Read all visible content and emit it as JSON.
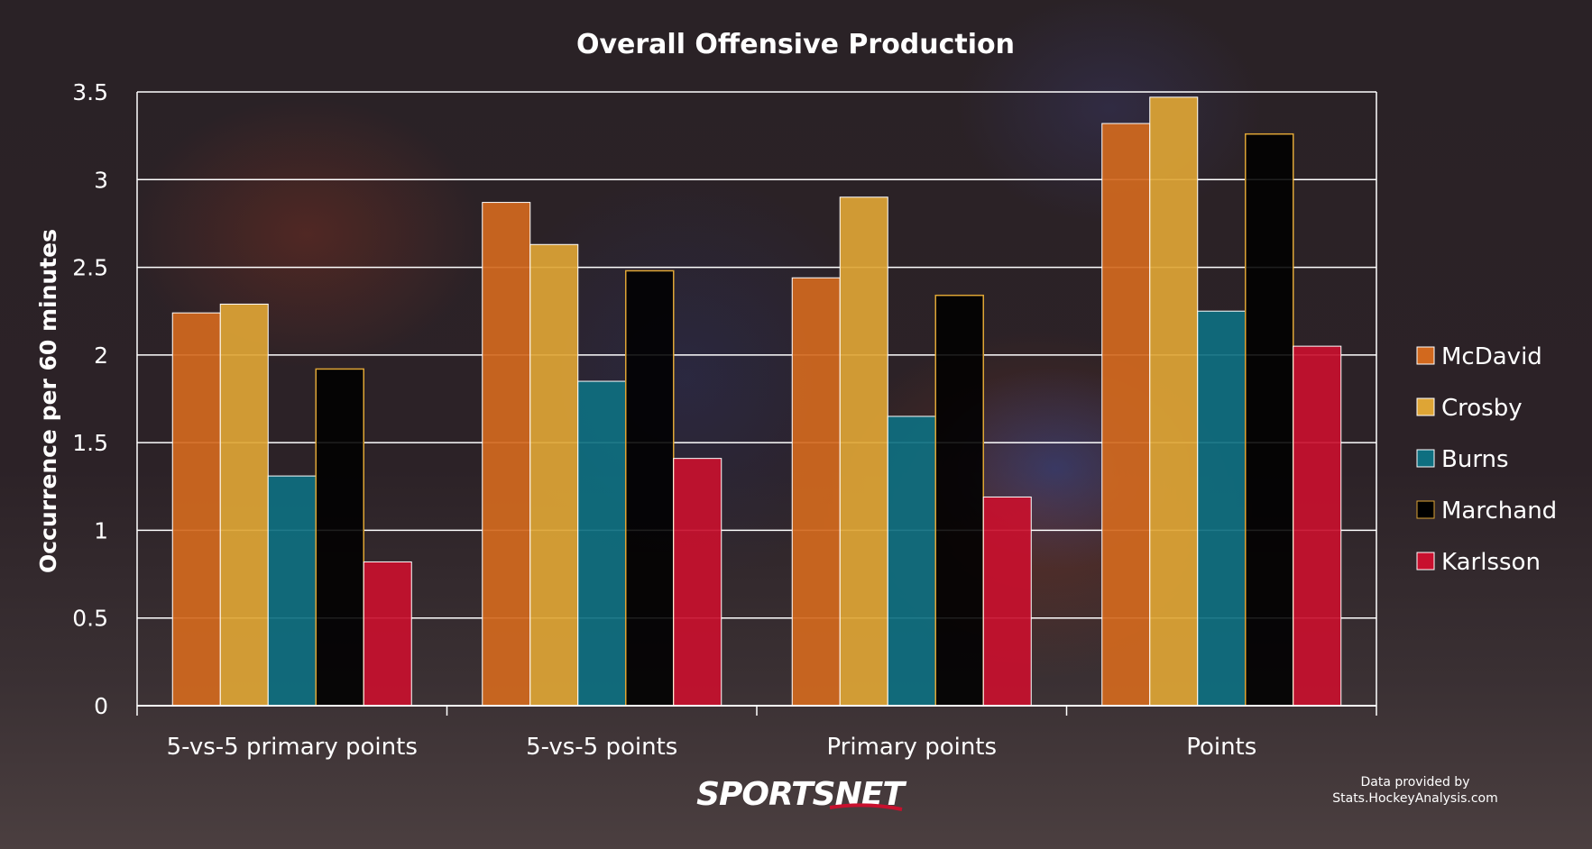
{
  "chart_data": {
    "type": "bar",
    "title": "Overall Offensive Production",
    "xlabel": "",
    "ylabel": "Occurrence per 60 minutes",
    "ylim": [
      0,
      3.5
    ],
    "yticks": [
      "0",
      "0.5",
      "1",
      "1.5",
      "2",
      "2.5",
      "3",
      "3.5"
    ],
    "categories": [
      "5-vs-5 primary points",
      "5-vs-5 points",
      "Primary points",
      "Points"
    ],
    "series": [
      {
        "name": "McDavid",
        "color": "#d2691e",
        "values": [
          2.24,
          2.87,
          2.44,
          3.32
        ]
      },
      {
        "name": "Crosby",
        "color": "#dea535",
        "values": [
          2.29,
          2.63,
          2.9,
          3.47
        ]
      },
      {
        "name": "Burns",
        "color": "#0e6f80",
        "values": [
          1.31,
          1.85,
          1.65,
          2.25
        ]
      },
      {
        "name": "Marchand",
        "color": "#000000",
        "values": [
          1.92,
          2.48,
          2.34,
          3.26
        ]
      },
      {
        "name": "Karlsson",
        "color": "#c8102e",
        "values": [
          0.82,
          1.41,
          1.19,
          2.05
        ]
      }
    ],
    "grid": true,
    "legend": "right"
  },
  "branding": {
    "logo": "SPORTSNET",
    "source_line1": "Data provided by",
    "source_line2": "Stats.HockeyAnalysis.com"
  }
}
